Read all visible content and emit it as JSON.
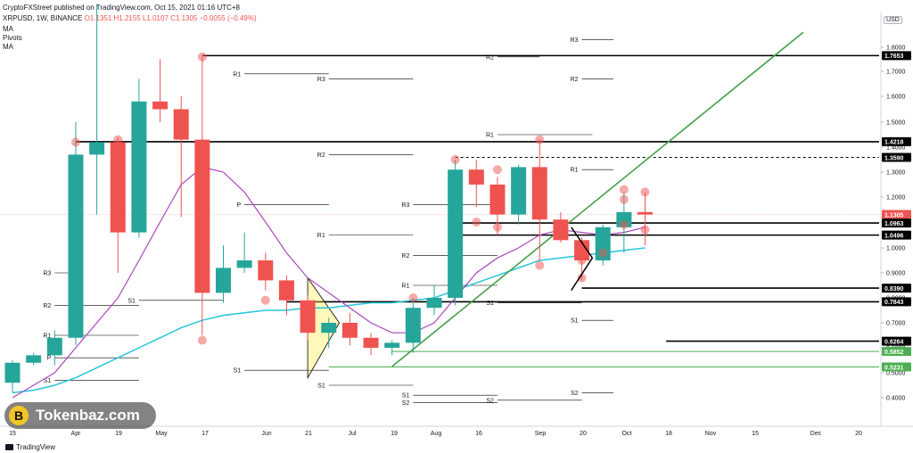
{
  "header": {
    "published": "CryptoFXStreet published on TradingView.com, Oct 15, 2021 01:16 UTC+8",
    "symbol_info": "XRPUSD, 1W, BINANCE",
    "ohlc": "O1.1351 H1.2155 L1.0107 C1.1305 −0.0055 (−0.49%)",
    "indicators": [
      "MA",
      "Pivots",
      "MA"
    ]
  },
  "watermark": {
    "logo_glyph": "B",
    "text": "Tokenbaz.com"
  },
  "footer": {
    "brand": "TradingView"
  },
  "chart_data": {
    "type": "candlestick",
    "currency": "USD",
    "y_axis": {
      "ticks": [
        "1.8000",
        "1.7000",
        "1.6000",
        "1.5000",
        "1.4000",
        "1.3000",
        "1.2000",
        "1.1000",
        "1.0000",
        "0.9000",
        "0.8000",
        "0.7000",
        "0.6000",
        "0.5000",
        "0.4000"
      ],
      "price_labels": [
        {
          "value": "1.7653",
          "color": "#000000"
        },
        {
          "value": "1.4218",
          "color": "#000000"
        },
        {
          "value": "1.3590",
          "color": "#000000"
        },
        {
          "value": "1.1305",
          "color": "#ef5350"
        },
        {
          "value": "3d 7h",
          "color": "#ef5350"
        },
        {
          "value": "1.0963",
          "color": "#000000"
        },
        {
          "value": "1.0496",
          "color": "#000000"
        },
        {
          "value": "0.8390",
          "color": "#000000"
        },
        {
          "value": "0.7843",
          "color": "#000000"
        },
        {
          "value": "0.6264",
          "color": "#000000"
        },
        {
          "value": "0.5852",
          "color": "#4caf50"
        },
        {
          "value": "0.5231",
          "color": "#4caf50"
        }
      ]
    },
    "x_axis": {
      "labels": [
        "15",
        "Apr",
        "19",
        "May",
        "17",
        "Jun",
        "21",
        "Jul",
        "19",
        "Aug",
        "16",
        "Sep",
        "20",
        "Oct",
        "18",
        "Nov",
        "15",
        "Dec",
        "20"
      ]
    },
    "candles": [
      {
        "o": 0.46,
        "h": 0.55,
        "l": 0.42,
        "c": 0.54
      },
      {
        "o": 0.54,
        "h": 0.58,
        "l": 0.53,
        "c": 0.57
      },
      {
        "o": 0.57,
        "h": 0.67,
        "l": 0.53,
        "c": 0.64
      },
      {
        "o": 0.64,
        "h": 1.5,
        "l": 0.61,
        "c": 1.37
      },
      {
        "o": 1.37,
        "h": 1.97,
        "l": 1.13,
        "c": 1.42
      },
      {
        "o": 1.42,
        "h": 1.44,
        "l": 0.9,
        "c": 1.06
      },
      {
        "o": 1.06,
        "h": 1.67,
        "l": 1.04,
        "c": 1.58
      },
      {
        "o": 1.58,
        "h": 1.75,
        "l": 1.5,
        "c": 1.55
      },
      {
        "o": 1.55,
        "h": 1.6,
        "l": 1.12,
        "c": 1.43
      },
      {
        "o": 1.43,
        "h": 1.76,
        "l": 0.65,
        "c": 0.82
      },
      {
        "o": 0.82,
        "h": 1.01,
        "l": 0.78,
        "c": 0.92
      },
      {
        "o": 0.92,
        "h": 1.06,
        "l": 0.9,
        "c": 0.95
      },
      {
        "o": 0.95,
        "h": 0.98,
        "l": 0.83,
        "c": 0.87
      },
      {
        "o": 0.87,
        "h": 0.89,
        "l": 0.73,
        "c": 0.79
      },
      {
        "o": 0.79,
        "h": 0.81,
        "l": 0.63,
        "c": 0.66
      },
      {
        "o": 0.66,
        "h": 0.72,
        "l": 0.6,
        "c": 0.7
      },
      {
        "o": 0.7,
        "h": 0.74,
        "l": 0.61,
        "c": 0.64
      },
      {
        "o": 0.64,
        "h": 0.66,
        "l": 0.57,
        "c": 0.6
      },
      {
        "o": 0.6,
        "h": 0.63,
        "l": 0.57,
        "c": 0.62
      },
      {
        "o": 0.62,
        "h": 0.8,
        "l": 0.58,
        "c": 0.76
      },
      {
        "o": 0.76,
        "h": 0.85,
        "l": 0.73,
        "c": 0.8
      },
      {
        "o": 0.8,
        "h": 1.35,
        "l": 0.77,
        "c": 1.31
      },
      {
        "o": 1.31,
        "h": 1.35,
        "l": 1.16,
        "c": 1.25
      },
      {
        "o": 1.25,
        "h": 1.28,
        "l": 1.05,
        "c": 1.13
      },
      {
        "o": 1.13,
        "h": 1.33,
        "l": 1.09,
        "c": 1.32
      },
      {
        "o": 1.32,
        "h": 1.43,
        "l": 0.95,
        "c": 1.11
      },
      {
        "o": 1.11,
        "h": 1.14,
        "l": 1.02,
        "c": 1.03
      },
      {
        "o": 1.03,
        "h": 1.04,
        "l": 0.87,
        "c": 0.95
      },
      {
        "o": 0.95,
        "h": 1.09,
        "l": 0.93,
        "c": 1.08
      },
      {
        "o": 1.08,
        "h": 1.22,
        "l": 0.98,
        "c": 1.14
      },
      {
        "o": 1.14,
        "h": 1.22,
        "l": 1.01,
        "c": 1.13
      }
    ],
    "ma_fast": [
      0.4,
      0.45,
      0.5,
      0.6,
      0.7,
      0.8,
      0.95,
      1.1,
      1.25,
      1.32,
      1.3,
      1.22,
      1.1,
      0.98,
      0.88,
      0.82,
      0.76,
      0.7,
      0.66,
      0.66,
      0.7,
      0.8,
      0.9,
      0.96,
      1.0,
      1.05,
      1.07,
      1.06,
      1.05,
      1.06,
      1.08
    ],
    "ma_slow": [
      0.42,
      0.43,
      0.45,
      0.48,
      0.52,
      0.56,
      0.6,
      0.64,
      0.68,
      0.71,
      0.73,
      0.74,
      0.75,
      0.75,
      0.76,
      0.76,
      0.77,
      0.78,
      0.78,
      0.79,
      0.8,
      0.83,
      0.86,
      0.89,
      0.92,
      0.95,
      0.96,
      0.97,
      0.98,
      0.99,
      1.0
    ],
    "trendline": {
      "from_candle": 18,
      "from_price": 0.525,
      "to_candle": 37.5,
      "to_price": 1.86
    },
    "pivot_levels": [
      {
        "label": "R3",
        "price": 1.83,
        "from": 27,
        "to": 28.5
      },
      {
        "label": "R2",
        "price": 1.76,
        "from": 23,
        "to": 25
      },
      {
        "label": "R1",
        "price": 1.69,
        "from": 11,
        "to": 15
      },
      {
        "label": "R3",
        "price": 1.67,
        "from": 15,
        "to": 19
      },
      {
        "label": "R2",
        "price": 1.67,
        "from": 27,
        "to": 28.5
      },
      {
        "label": "R1",
        "price": 1.45,
        "from": 23,
        "to": 27.5
      },
      {
        "label": "R2",
        "price": 1.37,
        "from": 15,
        "to": 19
      },
      {
        "label": "R1",
        "price": 1.31,
        "from": 27,
        "to": 28.5
      },
      {
        "label": "P",
        "price": 1.17,
        "from": 11,
        "to": 15
      },
      {
        "label": "R3",
        "price": 1.17,
        "from": 19,
        "to": 23
      },
      {
        "label": "R1",
        "price": 1.05,
        "from": 15,
        "to": 19
      },
      {
        "label": "R2",
        "price": 0.97,
        "from": 19,
        "to": 23
      },
      {
        "label": "R3",
        "price": 0.9,
        "from": 2,
        "to": 3
      },
      {
        "label": "R1",
        "price": 0.85,
        "from": 19,
        "to": 23
      },
      {
        "label": "S1",
        "price": 0.79,
        "from": 6,
        "to": 10
      },
      {
        "label": "R2",
        "price": 0.77,
        "from": 2,
        "to": 6
      },
      {
        "label": "S1",
        "price": 0.78,
        "from": 23,
        "to": 27
      },
      {
        "label": "S1",
        "price": 0.71,
        "from": 27,
        "to": 28.5
      },
      {
        "label": "R1",
        "price": 0.65,
        "from": 2,
        "to": 6
      },
      {
        "label": "P",
        "price": 0.56,
        "from": 2,
        "to": 6
      },
      {
        "label": "S1",
        "price": 0.51,
        "from": 11,
        "to": 15
      },
      {
        "label": "S1",
        "price": 0.47,
        "from": 2,
        "to": 6
      },
      {
        "label": "S1",
        "price": 0.45,
        "from": 15,
        "to": 19
      },
      {
        "label": "S1",
        "price": 0.41,
        "from": 19,
        "to": 23
      },
      {
        "label": "S2",
        "price": 0.42,
        "from": 27,
        "to": 28.5
      },
      {
        "label": "S2",
        "price": 0.39,
        "from": 23,
        "to": 27
      },
      {
        "label": "S2",
        "price": 0.38,
        "from": 19,
        "to": 23
      }
    ],
    "horizontal_levels": [
      {
        "price": 1.7653,
        "from": 9,
        "color": "#000000",
        "dashed": false
      },
      {
        "price": 1.4218,
        "from": 3,
        "color": "#000000",
        "dashed": false
      },
      {
        "price": 1.359,
        "from": 21,
        "color": "#000000",
        "dashed": true
      },
      {
        "price": 1.0963,
        "from": 21,
        "color": "#000000",
        "dashed": false
      },
      {
        "price": 1.0496,
        "from": 21,
        "color": "#000000",
        "dashed": false
      },
      {
        "price": 0.839,
        "from": 27,
        "color": "#000000",
        "dashed": false
      },
      {
        "price": 0.7843,
        "from": 13,
        "color": "#000000",
        "dashed": false
      },
      {
        "price": 0.6264,
        "from": 31,
        "color": "#000000",
        "dashed": false
      },
      {
        "price": 0.5852,
        "from": 18,
        "color": "#4caf50",
        "dashed": false
      },
      {
        "price": 0.5231,
        "from": 15,
        "color": "#4caf50",
        "dashed": false
      }
    ],
    "pattern_markers": [
      {
        "candle": 3,
        "price": 1.42
      },
      {
        "candle": 5,
        "price": 1.43
      },
      {
        "candle": 9,
        "price": 1.76
      },
      {
        "candle": 9,
        "price": 0.63
      },
      {
        "candle": 12,
        "price": 0.79
      },
      {
        "candle": 19,
        "price": 0.8
      },
      {
        "candle": 21,
        "price": 1.35
      },
      {
        "candle": 22,
        "price": 1.1
      },
      {
        "candle": 23,
        "price": 1.31
      },
      {
        "candle": 23,
        "price": 1.08
      },
      {
        "candle": 25,
        "price": 1.43
      },
      {
        "candle": 25,
        "price": 0.93
      },
      {
        "candle": 27,
        "price": 0.95
      },
      {
        "candle": 27,
        "price": 0.88
      },
      {
        "candle": 29,
        "price": 1.23
      },
      {
        "candle": 29,
        "price": 1.19
      },
      {
        "candle": 29,
        "price": 1.09
      },
      {
        "candle": 30,
        "price": 1.22
      },
      {
        "candle": 30,
        "price": 1.07
      },
      {
        "candle": 28,
        "price": 0.98
      }
    ],
    "triangle": [
      {
        "candle": 14,
        "price": 0.88
      },
      {
        "candle": 15.5,
        "price": 0.7
      },
      {
        "candle": 14,
        "price": 0.48
      }
    ],
    "arrow_path": [
      {
        "candle": 26.5,
        "price": 0.83
      },
      {
        "candle": 27.5,
        "price": 0.96
      },
      {
        "candle": 26.5,
        "price": 1.08
      }
    ],
    "last_price_line": 1.1305,
    "grid": false,
    "legend": "top-left"
  }
}
